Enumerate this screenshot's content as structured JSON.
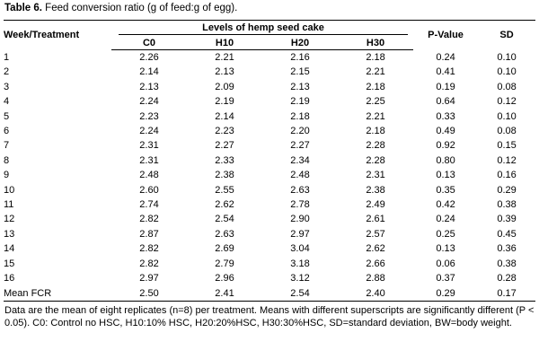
{
  "caption": {
    "label": "Table 6.",
    "text": " Feed conversion ratio (g of feed:g of egg)."
  },
  "headers": {
    "week": "Week/Treatment",
    "group": "Levels of hemp seed cake",
    "c0": "C0",
    "h10": "H10",
    "h20": "H20",
    "h30": "H30",
    "pvalue": "P-Value",
    "sd": "SD"
  },
  "rows": [
    {
      "week": "1",
      "c0": "2.26",
      "h10": "2.21",
      "h20": "2.16",
      "h30": "2.18",
      "p": "0.24",
      "sd": "0.10"
    },
    {
      "week": "2",
      "c0": "2.14",
      "h10": "2.13",
      "h20": "2.15",
      "h30": "2.21",
      "p": "0.41",
      "sd": "0.10"
    },
    {
      "week": "3",
      "c0": "2.13",
      "h10": "2.09",
      "h20": "2.13",
      "h30": "2.18",
      "p": "0.19",
      "sd": "0.08"
    },
    {
      "week": "4",
      "c0": "2.24",
      "h10": "2.19",
      "h20": "2.19",
      "h30": "2.25",
      "p": "0.64",
      "sd": "0.12"
    },
    {
      "week": "5",
      "c0": "2.23",
      "h10": "2.14",
      "h20": "2.18",
      "h30": "2.21",
      "p": "0.33",
      "sd": "0.10"
    },
    {
      "week": "6",
      "c0": "2.24",
      "h10": "2.23",
      "h20": "2.20",
      "h30": "2.18",
      "p": "0.49",
      "sd": "0.08"
    },
    {
      "week": "7",
      "c0": "2.31",
      "h10": "2.27",
      "h20": "2.27",
      "h30": "2.28",
      "p": "0.92",
      "sd": "0.15"
    },
    {
      "week": "8",
      "c0": "2.31",
      "h10": "2.33",
      "h20": "2.34",
      "h30": "2.28",
      "p": "0.80",
      "sd": "0.12"
    },
    {
      "week": "9",
      "c0": "2.48",
      "h10": "2.38",
      "h20": "2.48",
      "h30": "2.31",
      "p": "0.13",
      "sd": "0.16"
    },
    {
      "week": "10",
      "c0": "2.60",
      "h10": "2.55",
      "h20": "2.63",
      "h30": "2.38",
      "p": "0.35",
      "sd": "0.29"
    },
    {
      "week": "11",
      "c0": "2.74",
      "h10": "2.62",
      "h20": "2.78",
      "h30": "2.49",
      "p": "0.42",
      "sd": "0.38"
    },
    {
      "week": "12",
      "c0": "2.82",
      "h10": "2.54",
      "h20": "2.90",
      "h30": "2.61",
      "p": "0.24",
      "sd": "0.39"
    },
    {
      "week": "13",
      "c0": "2.87",
      "h10": "2.63",
      "h20": "2.97",
      "h30": "2.57",
      "p": "0.25",
      "sd": "0.45"
    },
    {
      "week": "14",
      "c0": "2.82",
      "h10": "2.69",
      "h20": "3.04",
      "h30": "2.62",
      "p": "0.13",
      "sd": "0.36"
    },
    {
      "week": "15",
      "c0": "2.82",
      "h10": "2.79",
      "h20": "3.18",
      "h30": "2.66",
      "p": "0.06",
      "sd": "0.38"
    },
    {
      "week": "16",
      "c0": "2.97",
      "h10": "2.96",
      "h20": "3.12",
      "h30": "2.88",
      "p": "0.37",
      "sd": "0.28"
    },
    {
      "week": "Mean FCR",
      "c0": "2.50",
      "h10": "2.41",
      "h20": "2.54",
      "h30": "2.40",
      "p": "0.29",
      "sd": "0.17"
    }
  ],
  "footnote": "Data are the mean of eight replicates (n=8) per treatment. Means with different superscripts are significantly different (P < 0.05). C0: Control no HSC, H10:10% HSC, H20:20%HSC, H30:30%HSC, SD=standard deviation, BW=body weight."
}
